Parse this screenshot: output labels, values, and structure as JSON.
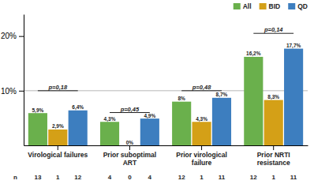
{
  "chart_data": {
    "type": "bar",
    "categories": [
      "Virological failures",
      "Prior suboptimal\nART",
      "Prior virological\nfailure",
      "Prior NRTI\nresistance"
    ],
    "series": [
      {
        "name": "All",
        "color": "#6ab04c",
        "values": [
          5.9,
          4.3,
          8.0,
          16.2
        ],
        "value_labels": [
          "5,9%",
          "4,3%",
          "8%",
          "16,2%"
        ],
        "counts": [
          13,
          4,
          12,
          12
        ]
      },
      {
        "name": "BID",
        "color": "#d4a017",
        "values": [
          2.9,
          0.0,
          4.3,
          8.3
        ],
        "value_labels": [
          "2,9%",
          "0%",
          "4,3%",
          "8,3%"
        ],
        "counts": [
          1,
          0,
          1,
          1
        ]
      },
      {
        "name": "QD",
        "color": "#3d7ebf",
        "values": [
          6.4,
          4.9,
          8.7,
          17.7
        ],
        "value_labels": [
          "6,4%",
          "4,9%",
          "8,7%",
          "17,7%"
        ],
        "counts": [
          12,
          4,
          11,
          11
        ]
      }
    ],
    "counts_label": "n",
    "brackets": [
      {
        "label": "p=0,18",
        "y": 10.0
      },
      {
        "label": "p=0,45",
        "y": 6.0
      },
      {
        "label": "p=0,48",
        "y": 10.0
      },
      {
        "label": "p=0,14",
        "y": 20.5
      }
    ],
    "reference_lines": [
      10
    ],
    "ylim": [
      0,
      24
    ],
    "yticks": [
      {
        "value": 10,
        "label": "10%"
      },
      {
        "value": 20,
        "label": "20%"
      }
    ],
    "grid": false,
    "data_labels": true,
    "legend": "upper right"
  }
}
